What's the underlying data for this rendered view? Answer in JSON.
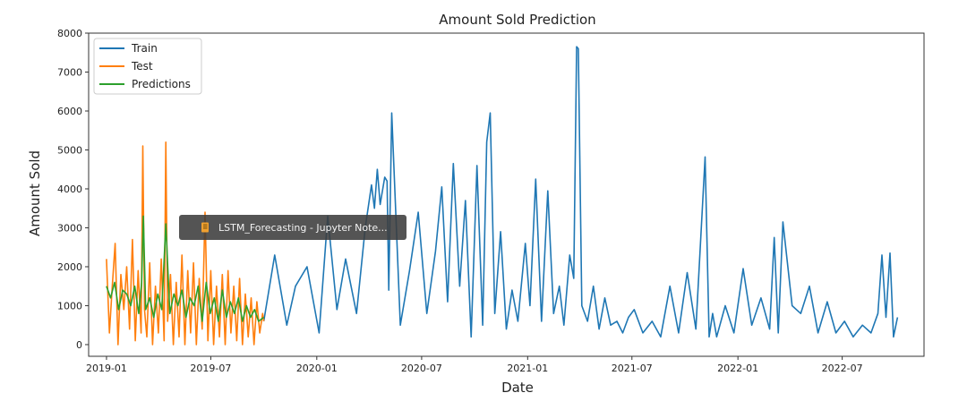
{
  "tooltip": {
    "icon": "notebook-icon",
    "text": "LSTM_Forecasting - Jupyter Note..."
  },
  "chart_data": {
    "type": "line",
    "title": "Amount Sold Prediction",
    "xlabel": "Date",
    "ylabel": "Amount Sold",
    "xlim": [
      "2018-12-01",
      "2022-11-20"
    ],
    "ylim": [
      -300,
      8000
    ],
    "yticks": [
      0,
      1000,
      2000,
      3000,
      4000,
      5000,
      6000,
      7000,
      8000
    ],
    "xticks": [
      "2019-01",
      "2019-07",
      "2020-01",
      "2020-07",
      "2021-01",
      "2021-07",
      "2022-01",
      "2022-07"
    ],
    "legend_location": "upper left",
    "grid": false,
    "series": [
      {
        "name": "Train",
        "color": "#1f77b4",
        "x": [
          "2019-10-01",
          "2019-10-20",
          "2019-11-10",
          "2019-11-25",
          "2019-12-15",
          "2020-01-05",
          "2020-01-20",
          "2020-02-05",
          "2020-02-20",
          "2020-03-10",
          "2020-03-25",
          "2020-04-05",
          "2020-04-10",
          "2020-04-15",
          "2020-04-20",
          "2020-04-28",
          "2020-05-02",
          "2020-05-05",
          "2020-05-10",
          "2020-05-25",
          "2020-06-10",
          "2020-06-25",
          "2020-07-10",
          "2020-07-25",
          "2020-08-05",
          "2020-08-15",
          "2020-08-25",
          "2020-09-05",
          "2020-09-15",
          "2020-09-25",
          "2020-10-05",
          "2020-10-15",
          "2020-10-22",
          "2020-10-28",
          "2020-11-05",
          "2020-11-15",
          "2020-11-25",
          "2020-12-05",
          "2020-12-15",
          "2020-12-28",
          "2021-01-05",
          "2021-01-15",
          "2021-01-25",
          "2021-02-05",
          "2021-02-15",
          "2021-02-25",
          "2021-03-05",
          "2021-03-15",
          "2021-03-22",
          "2021-03-27",
          "2021-03-30",
          "2021-04-05",
          "2021-04-15",
          "2021-04-25",
          "2021-05-05",
          "2021-05-15",
          "2021-05-25",
          "2021-06-05",
          "2021-06-15",
          "2021-06-25",
          "2021-07-05",
          "2021-07-20",
          "2021-08-05",
          "2021-08-20",
          "2021-09-05",
          "2021-09-20",
          "2021-10-05",
          "2021-10-20",
          "2021-11-05",
          "2021-11-12",
          "2021-11-18",
          "2021-11-25",
          "2021-12-10",
          "2021-12-25",
          "2022-01-10",
          "2022-01-25",
          "2022-02-10",
          "2022-02-25",
          "2022-03-05",
          "2022-03-12",
          "2022-03-20",
          "2022-04-05",
          "2022-04-20",
          "2022-05-05",
          "2022-05-20",
          "2022-06-05",
          "2022-06-20",
          "2022-07-05",
          "2022-07-20",
          "2022-08-05",
          "2022-08-20",
          "2022-09-01",
          "2022-09-08",
          "2022-09-15",
          "2022-09-22",
          "2022-09-28",
          "2022-10-05"
        ],
        "values": [
          600,
          2300,
          500,
          1500,
          2000,
          300,
          3300,
          900,
          2200,
          800,
          3000,
          4100,
          3500,
          4500,
          3600,
          4300,
          4200,
          1400,
          5950,
          500,
          1900,
          3400,
          800,
          2400,
          4050,
          1100,
          4650,
          1500,
          3700,
          200,
          4600,
          500,
          5200,
          5950,
          800,
          2900,
          400,
          1400,
          600,
          2600,
          1000,
          4250,
          600,
          3950,
          800,
          1500,
          500,
          2300,
          1700,
          7650,
          7600,
          1000,
          600,
          1500,
          400,
          1200,
          500,
          600,
          300,
          700,
          900,
          300,
          600,
          200,
          1500,
          300,
          1850,
          400,
          4820,
          200,
          800,
          200,
          1000,
          300,
          1950,
          500,
          1200,
          400,
          2750,
          300,
          3150,
          1000,
          800,
          1500,
          300,
          1100,
          300,
          600,
          200,
          500,
          300,
          800,
          2300,
          700,
          2350,
          200,
          700
        ]
      },
      {
        "name": "Test",
        "color": "#ff7f0e",
        "x": [
          "2019-01-01",
          "2019-01-06",
          "2019-01-11",
          "2019-01-16",
          "2019-01-21",
          "2019-01-26",
          "2019-01-31",
          "2019-02-05",
          "2019-02-10",
          "2019-02-15",
          "2019-02-20",
          "2019-02-25",
          "2019-03-02",
          "2019-03-05",
          "2019-03-08",
          "2019-03-12",
          "2019-03-17",
          "2019-03-22",
          "2019-03-27",
          "2019-04-01",
          "2019-04-06",
          "2019-04-11",
          "2019-04-14",
          "2019-04-17",
          "2019-04-22",
          "2019-04-27",
          "2019-05-02",
          "2019-05-07",
          "2019-05-12",
          "2019-05-17",
          "2019-05-22",
          "2019-05-27",
          "2019-06-01",
          "2019-06-06",
          "2019-06-11",
          "2019-06-16",
          "2019-06-21",
          "2019-06-26",
          "2019-07-01",
          "2019-07-06",
          "2019-07-11",
          "2019-07-16",
          "2019-07-21",
          "2019-07-26",
          "2019-07-31",
          "2019-08-05",
          "2019-08-10",
          "2019-08-15",
          "2019-08-20",
          "2019-08-25",
          "2019-08-30",
          "2019-09-04",
          "2019-09-09",
          "2019-09-14",
          "2019-09-19",
          "2019-09-24",
          "2019-09-29",
          "2019-10-01"
        ],
        "values": [
          2200,
          300,
          1500,
          2600,
          0,
          1800,
          900,
          2000,
          400,
          2700,
          100,
          1900,
          300,
          5100,
          900,
          200,
          2100,
          0,
          1500,
          300,
          2200,
          100,
          5200,
          600,
          1800,
          0,
          1600,
          200,
          2300,
          0,
          1900,
          300,
          2100,
          0,
          1700,
          400,
          3400,
          100,
          1900,
          0,
          1500,
          200,
          1800,
          0,
          1900,
          300,
          1500,
          100,
          1700,
          0,
          1300,
          200,
          1200,
          0,
          1100,
          300,
          800,
          600
        ]
      },
      {
        "name": "Predictions",
        "color": "#2ca02c",
        "x": [
          "2019-01-01",
          "2019-01-08",
          "2019-01-15",
          "2019-01-22",
          "2019-01-29",
          "2019-02-05",
          "2019-02-12",
          "2019-02-19",
          "2019-02-26",
          "2019-03-03",
          "2019-03-06",
          "2019-03-10",
          "2019-03-17",
          "2019-03-24",
          "2019-03-31",
          "2019-04-07",
          "2019-04-14",
          "2019-04-21",
          "2019-04-28",
          "2019-05-05",
          "2019-05-12",
          "2019-05-19",
          "2019-05-26",
          "2019-06-02",
          "2019-06-09",
          "2019-06-16",
          "2019-06-23",
          "2019-06-30",
          "2019-07-07",
          "2019-07-14",
          "2019-07-21",
          "2019-07-28",
          "2019-08-04",
          "2019-08-11",
          "2019-08-18",
          "2019-08-25",
          "2019-09-01",
          "2019-09-08",
          "2019-09-15",
          "2019-09-22",
          "2019-10-01"
        ],
        "values": [
          1500,
          1200,
          1600,
          900,
          1400,
          1300,
          1000,
          1500,
          800,
          1600,
          3300,
          900,
          1200,
          700,
          1300,
          900,
          3100,
          800,
          1300,
          1000,
          1400,
          700,
          1200,
          1000,
          1500,
          600,
          1600,
          800,
          1200,
          600,
          1400,
          700,
          1100,
          800,
          1200,
          600,
          1000,
          700,
          900,
          600,
          700
        ]
      }
    ]
  }
}
